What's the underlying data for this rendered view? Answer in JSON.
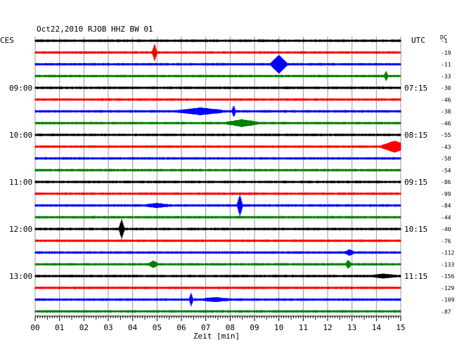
{
  "chart_data": {
    "type": "line",
    "title": "Oct22,2010  RJOB HHZ BW 01",
    "left_timezone": "CES",
    "right_timezone": "UTC",
    "dc_header": "DC",
    "xlabel": "Zeit [min]",
    "xlim": [
      0,
      15
    ],
    "x_ticks": [
      "00",
      "01",
      "02",
      "03",
      "04",
      "05",
      "06",
      "07",
      "08",
      "09",
      "10",
      "11",
      "12",
      "13",
      "14",
      "15"
    ],
    "trace_colors": [
      "#000000",
      "#ff0000",
      "#0000ff",
      "#007f00"
    ],
    "traces_per_hour": 4,
    "left_hour_labels": [
      {
        "trace": 4,
        "text": "09:00"
      },
      {
        "trace": 8,
        "text": "10:00"
      },
      {
        "trace": 12,
        "text": "11:00"
      },
      {
        "trace": 16,
        "text": "12:00"
      },
      {
        "trace": 20,
        "text": "13:00"
      }
    ],
    "right_hour_labels": [
      {
        "trace": 4,
        "text": "07:15"
      },
      {
        "trace": 8,
        "text": "08:15"
      },
      {
        "trace": 12,
        "text": "09:15"
      },
      {
        "trace": 16,
        "text": "10:15"
      },
      {
        "trace": 20,
        "text": "11:15"
      }
    ],
    "dc_offsets": [
      "-1",
      "-19",
      "-11",
      "-33",
      "-30",
      "-46",
      "-38",
      "-46",
      "-55",
      "-43",
      "-58",
      "-54",
      "-86",
      "-99",
      "-84",
      "-44",
      "-40",
      "-76",
      "-112",
      "-133",
      "-156",
      "-129",
      "-109",
      "-87"
    ],
    "events": [
      {
        "trace": 1,
        "minute": 4.9,
        "amplitude": 11,
        "duration": 0.1
      },
      {
        "trace": 2,
        "minute": 10.0,
        "amplitude": 12,
        "duration": 0.35
      },
      {
        "trace": 3,
        "minute": 14.4,
        "amplitude": 6,
        "duration": 0.08
      },
      {
        "trace": 6,
        "minute": 6.8,
        "amplitude": 4,
        "duration": 1.0
      },
      {
        "trace": 6,
        "minute": 8.15,
        "amplitude": 7,
        "duration": 0.08
      },
      {
        "trace": 7,
        "minute": 8.5,
        "amplitude": 4,
        "duration": 0.7
      },
      {
        "trace": 9,
        "minute": 14.75,
        "amplitude": 7,
        "duration": 0.6
      },
      {
        "trace": 14,
        "minute": 8.4,
        "amplitude": 14,
        "duration": 0.12
      },
      {
        "trace": 14,
        "minute": 5.0,
        "amplitude": 2,
        "duration": 0.5
      },
      {
        "trace": 16,
        "minute": 3.55,
        "amplitude": 13,
        "duration": 0.12
      },
      {
        "trace": 18,
        "minute": 12.9,
        "amplitude": 3,
        "duration": 0.2
      },
      {
        "trace": 19,
        "minute": 4.85,
        "amplitude": 4,
        "duration": 0.2
      },
      {
        "trace": 19,
        "minute": 12.85,
        "amplitude": 5,
        "duration": 0.12
      },
      {
        "trace": 20,
        "minute": 14.3,
        "amplitude": 2,
        "duration": 0.5
      },
      {
        "trace": 22,
        "minute": 6.4,
        "amplitude": 9,
        "duration": 0.08
      },
      {
        "trace": 22,
        "minute": 7.4,
        "amplitude": 2,
        "duration": 0.6
      }
    ],
    "grid": true
  }
}
